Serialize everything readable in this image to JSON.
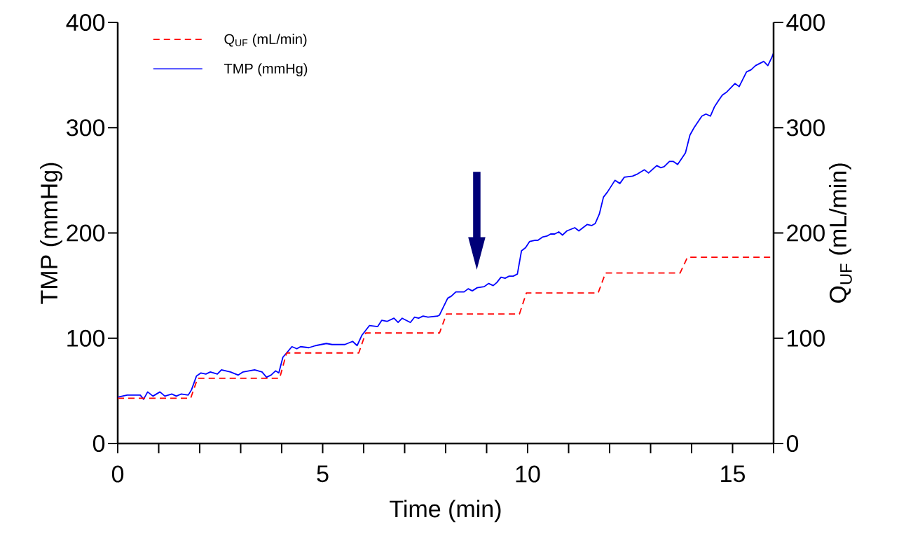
{
  "chart_data": {
    "type": "line",
    "xlabel": "Time (min)",
    "ylabel": "TMP (mmHg)",
    "y2label": "Q$_{UF}$ (mL/min)",
    "xlim": [
      0,
      16
    ],
    "xticks": [
      0,
      {
        "value": 1,
        "label": null
      },
      {
        "value": 2,
        "label": null
      },
      {
        "value": 3,
        "label": null
      },
      {
        "value": 4,
        "label": null
      },
      5,
      {
        "value": 6,
        "label": null
      },
      {
        "value": 7,
        "label": null
      },
      {
        "value": 8,
        "label": null
      },
      {
        "value": 9,
        "label": null
      },
      10,
      {
        "value": 11,
        "label": null
      },
      {
        "value": 12,
        "label": null
      },
      {
        "value": 13,
        "label": null
      },
      {
        "value": 14,
        "label": null
      },
      15,
      {
        "value": 16,
        "label": null
      }
    ],
    "ylim": [
      0,
      400
    ],
    "yticks": [
      0,
      100,
      200,
      300,
      400
    ],
    "y2lim": [
      0,
      400
    ],
    "y2ticks": [
      0,
      100,
      200,
      300,
      400
    ],
    "grid": false,
    "legend": "top left",
    "marker": "none",
    "series": [
      {
        "name": "Q$_{UF}$ (mL/min)",
        "color": "#ff0000",
        "line_style": "dashed",
        "axis": "y2",
        "x": [
          0,
          1.78,
          1.95,
          3.95,
          4.12,
          5.88,
          6.05,
          7.85,
          8.02,
          9.8,
          9.97,
          11.72,
          11.9,
          13.72,
          13.9,
          16
        ],
        "values": [
          43,
          43,
          62,
          62,
          86,
          86,
          105,
          105,
          123,
          123,
          143,
          143,
          162,
          162,
          177,
          177
        ]
      },
      {
        "name": "TMP (mmHg)",
        "color": "#0000ff",
        "line_style": "solid",
        "x": [
          0,
          0.23,
          0.55,
          0.63,
          0.73,
          0.86,
          1.03,
          1.15,
          1.32,
          1.43,
          1.55,
          1.72,
          1.8,
          1.92,
          2.03,
          2.15,
          2.26,
          2.43,
          2.53,
          2.75,
          2.94,
          3.06,
          3.34,
          3.52,
          3.63,
          3.74,
          3.85,
          3.93,
          4.03,
          4.12,
          4.25,
          4.37,
          4.46,
          4.66,
          4.83,
          5.09,
          5.23,
          5.54,
          5.73,
          5.84,
          5.96,
          6.14,
          6.34,
          6.44,
          6.57,
          6.74,
          6.84,
          6.94,
          7.14,
          7.24,
          7.34,
          7.45,
          7.57,
          7.8,
          7.85,
          8.05,
          8.14,
          8.25,
          8.45,
          8.55,
          8.65,
          8.77,
          8.94,
          9.05,
          9.16,
          9.25,
          9.35,
          9.45,
          9.55,
          9.65,
          9.75,
          9.85,
          9.95,
          10.05,
          10.17,
          10.25,
          10.36,
          10.47,
          10.56,
          10.66,
          10.76,
          10.85,
          10.96,
          11.15,
          11.25,
          11.45,
          11.56,
          11.65,
          11.75,
          11.85,
          11.95,
          12.13,
          12.25,
          12.36,
          12.56,
          12.68,
          12.85,
          12.95,
          13.15,
          13.25,
          13.33,
          13.46,
          13.55,
          13.66,
          13.85,
          13.96,
          14.06,
          14.25,
          14.35,
          14.46,
          14.56,
          14.66,
          14.75,
          14.86,
          15.06,
          15.16,
          15.25,
          15.34,
          15.45,
          15.56,
          15.76,
          15.86,
          15.96,
          16
        ],
        "values": [
          44,
          46,
          46,
          42,
          49,
          45,
          49,
          45,
          47,
          45,
          47,
          46,
          51,
          64,
          67,
          66,
          68,
          66,
          70,
          68,
          65,
          68,
          70,
          68,
          63,
          65,
          69,
          67,
          82,
          86,
          92,
          90,
          92,
          91,
          93,
          95,
          94,
          94,
          97,
          93,
          103,
          112,
          111,
          117,
          116,
          119,
          115,
          119,
          115,
          120,
          119,
          121,
          120,
          121,
          122,
          138,
          140,
          144,
          144,
          147,
          145,
          148,
          149,
          152,
          150,
          153,
          158,
          157,
          159,
          159,
          161,
          183,
          186,
          192,
          193,
          193,
          196,
          197,
          199,
          199,
          201,
          198,
          202,
          205,
          202,
          208,
          207,
          209,
          218,
          234,
          239,
          250,
          247,
          253,
          254,
          256,
          260,
          257,
          264,
          262,
          263,
          268,
          268,
          265,
          276,
          293,
          300,
          311,
          313,
          311,
          320,
          326,
          331,
          334,
          342,
          339,
          346,
          353,
          355,
          359,
          363,
          359,
          367,
          371
        ]
      }
    ]
  }
}
